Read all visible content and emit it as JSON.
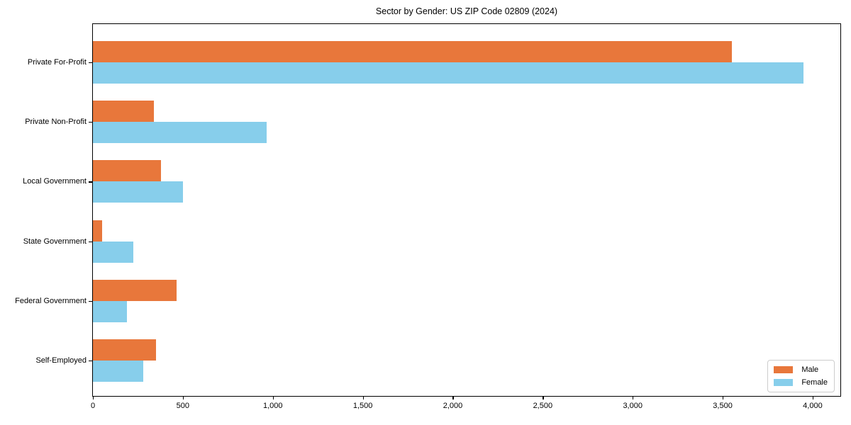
{
  "figure": {
    "title": "Sector by Gender: US ZIP Code 02809 (2024)"
  },
  "chart_data": {
    "type": "bar",
    "orientation": "horizontal",
    "title": "Sector by Gender: US ZIP Code 02809 (2024)",
    "categories": [
      "Private For-Profit",
      "Private Non-Profit",
      "Local Government",
      "State Government",
      "Federal Government",
      "Self-Employed"
    ],
    "series": [
      {
        "name": "Male",
        "color": "#e8773b",
        "values": [
          3550,
          340,
          380,
          50,
          465,
          350
        ]
      },
      {
        "name": "Female",
        "color": "#87ceeb",
        "values": [
          3950,
          965,
          500,
          225,
          190,
          280
        ]
      }
    ],
    "x_axis": {
      "min": 0,
      "max": 4150,
      "ticks": [
        {
          "value": 0,
          "label": "0"
        },
        {
          "value": 500,
          "label": "500"
        },
        {
          "value": 1000,
          "label": "1,000"
        },
        {
          "value": 1500,
          "label": "1,500"
        },
        {
          "value": 2000,
          "label": "2,000"
        },
        {
          "value": 2500,
          "label": "2,500"
        },
        {
          "value": 3000,
          "label": "3,000"
        },
        {
          "value": 3500,
          "label": "3,500"
        },
        {
          "value": 4000,
          "label": "4,000"
        }
      ]
    },
    "ylabel": "",
    "xlabel": "",
    "grid": false,
    "legend": {
      "position": "lower right",
      "entries": [
        "Male",
        "Female"
      ]
    }
  }
}
